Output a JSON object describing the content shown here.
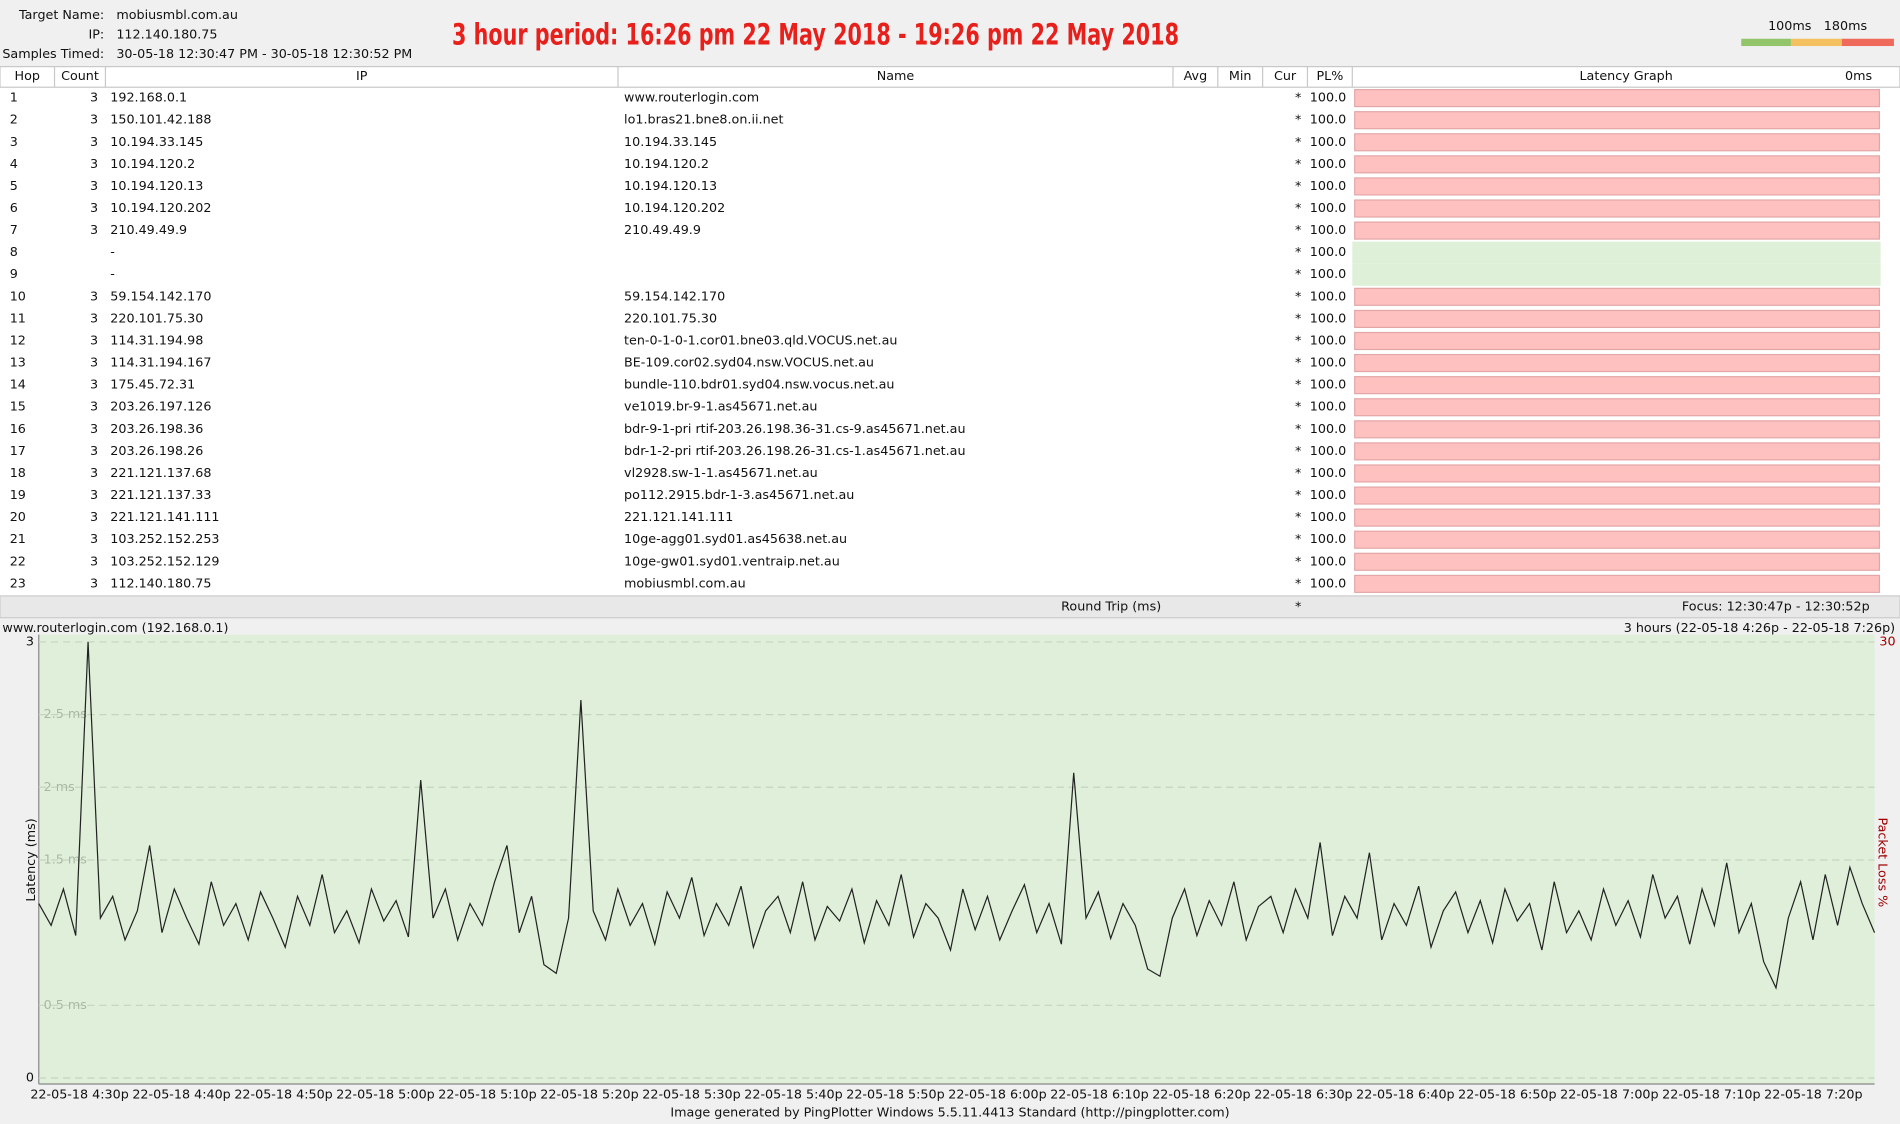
{
  "header": {
    "fields": [
      {
        "label": "Target Name:",
        "value": "mobiusmbl.com.au"
      },
      {
        "label": "IP:",
        "value": "112.140.180.75"
      },
      {
        "label": "Samples Timed:",
        "value": "30-05-18 12:30:47 PM - 30-05-18 12:30:52 PM"
      }
    ],
    "title": "3 hour period:  16:26 pm 22 May 2018 - 19:26 pm 22 May 2018",
    "scale_labels": [
      "100ms",
      "180ms"
    ]
  },
  "table": {
    "columns": [
      "Hop",
      "Count",
      "IP",
      "Name",
      "Avg",
      "Min",
      "Cur",
      "PL%",
      "Latency Graph"
    ],
    "graph_scale": "0ms",
    "rows": [
      {
        "hop": "1",
        "count": "3",
        "ip": "192.168.0.1",
        "name": "www.routerlogin.com",
        "cur": "*",
        "pl": "100.0"
      },
      {
        "hop": "2",
        "count": "3",
        "ip": "150.101.42.188",
        "name": "lo1.bras21.bne8.on.ii.net",
        "cur": "*",
        "pl": "100.0"
      },
      {
        "hop": "3",
        "count": "3",
        "ip": "10.194.33.145",
        "name": "10.194.33.145",
        "cur": "*",
        "pl": "100.0"
      },
      {
        "hop": "4",
        "count": "3",
        "ip": "10.194.120.2",
        "name": "10.194.120.2",
        "cur": "*",
        "pl": "100.0"
      },
      {
        "hop": "5",
        "count": "3",
        "ip": "10.194.120.13",
        "name": "10.194.120.13",
        "cur": "*",
        "pl": "100.0"
      },
      {
        "hop": "6",
        "count": "3",
        "ip": "10.194.120.202",
        "name": "10.194.120.202",
        "cur": "*",
        "pl": "100.0"
      },
      {
        "hop": "7",
        "count": "3",
        "ip": "210.49.49.9",
        "name": "210.49.49.9",
        "cur": "*",
        "pl": "100.0"
      },
      {
        "hop": "8",
        "ip": "-",
        "cur": "*",
        "pl": "100.0"
      },
      {
        "hop": "9",
        "ip": "-",
        "cur": "*",
        "pl": "100.0"
      },
      {
        "hop": "10",
        "count": "3",
        "ip": "59.154.142.170",
        "name": "59.154.142.170",
        "cur": "*",
        "pl": "100.0"
      },
      {
        "hop": "11",
        "count": "3",
        "ip": "220.101.75.30",
        "name": "220.101.75.30",
        "cur": "*",
        "pl": "100.0"
      },
      {
        "hop": "12",
        "count": "3",
        "ip": "114.31.194.98",
        "name": "ten-0-1-0-1.cor01.bne03.qld.VOCUS.net.au",
        "cur": "*",
        "pl": "100.0"
      },
      {
        "hop": "13",
        "count": "3",
        "ip": "114.31.194.167",
        "name": "BE-109.cor02.syd04.nsw.VOCUS.net.au",
        "cur": "*",
        "pl": "100.0"
      },
      {
        "hop": "14",
        "count": "3",
        "ip": "175.45.72.31",
        "name": "bundle-110.bdr01.syd04.nsw.vocus.net.au",
        "cur": "*",
        "pl": "100.0"
      },
      {
        "hop": "15",
        "count": "3",
        "ip": "203.26.197.126",
        "name": "ve1019.br-9-1.as45671.net.au",
        "cur": "*",
        "pl": "100.0"
      },
      {
        "hop": "16",
        "count": "3",
        "ip": "203.26.198.36",
        "name": "bdr-9-1-pri rtif-203.26.198.36-31.cs-9.as45671.net.au",
        "cur": "*",
        "pl": "100.0"
      },
      {
        "hop": "17",
        "count": "3",
        "ip": "203.26.198.26",
        "name": "bdr-1-2-pri rtif-203.26.198.26-31.cs-1.as45671.net.au",
        "cur": "*",
        "pl": "100.0"
      },
      {
        "hop": "18",
        "count": "3",
        "ip": "221.121.137.68",
        "name": "vl2928.sw-1-1.as45671.net.au",
        "cur": "*",
        "pl": "100.0"
      },
      {
        "hop": "19",
        "count": "3",
        "ip": "221.121.137.33",
        "name": "po112.2915.bdr-1-3.as45671.net.au",
        "cur": "*",
        "pl": "100.0"
      },
      {
        "hop": "20",
        "count": "3",
        "ip": "221.121.141.111",
        "name": "221.121.141.111",
        "cur": "*",
        "pl": "100.0"
      },
      {
        "hop": "21",
        "count": "3",
        "ip": "103.252.152.253",
        "name": "10ge-agg01.syd01.as45638.net.au",
        "cur": "*",
        "pl": "100.0"
      },
      {
        "hop": "22",
        "count": "3",
        "ip": "103.252.152.129",
        "name": "10ge-gw01.syd01.ventraip.net.au",
        "cur": "*",
        "pl": "100.0"
      },
      {
        "hop": "23",
        "count": "3",
        "ip": "112.140.180.75",
        "name": "mobiusmbl.com.au",
        "cur": "*",
        "pl": "100.0"
      }
    ],
    "summary": {
      "label": "Round Trip (ms)",
      "cur": "*",
      "focus": "Focus: 12:30:47p - 12:30:52p"
    }
  },
  "chart_data": {
    "type": "line",
    "title": "www.routerlogin.com (192.168.0.1)",
    "subtitle": "3 hours (22-05-18 4:26p - 22-05-18 7:26p)",
    "ylabel": "Latency (ms)",
    "y2label": "Packet Loss %",
    "ylim": [
      0,
      3
    ],
    "yticks": [
      0,
      {
        "value": 0.5,
        "label": "0.5 ms"
      },
      {
        "value": 1.5,
        "label": "1.5 ms"
      },
      {
        "value": 2,
        "label": "2 ms"
      },
      {
        "value": 2.5,
        "label": "2.5 ms"
      },
      3
    ],
    "y2lim": [
      0,
      30
    ],
    "y2ticks": [
      30
    ],
    "x_labels": [
      "22-05-18 4:30p",
      "22-05-18 4:40p",
      "22-05-18 4:50p",
      "22-05-18 5:00p",
      "22-05-18 5:10p",
      "22-05-18 5:20p",
      "22-05-18 5:30p",
      "22-05-18 5:40p",
      "22-05-18 5:50p",
      "22-05-18 6:00p",
      "22-05-18 6:10p",
      "22-05-18 6:20p",
      "22-05-18 6:30p",
      "22-05-18 6:40p",
      "22-05-18 6:50p",
      "22-05-18 7:00p",
      "22-05-18 7:10p",
      "22-05-18 7:20p"
    ],
    "color": "#222222",
    "background": "#dfefd9",
    "grid": true,
    "values": [
      1.2,
      1.05,
      1.3,
      0.98,
      3.0,
      1.1,
      1.25,
      0.95,
      1.15,
      1.6,
      1.0,
      1.3,
      1.1,
      0.92,
      1.35,
      1.05,
      1.2,
      0.95,
      1.28,
      1.1,
      0.9,
      1.25,
      1.05,
      1.4,
      1.0,
      1.15,
      0.93,
      1.3,
      1.08,
      1.22,
      0.97,
      2.05,
      1.1,
      1.3,
      0.95,
      1.2,
      1.05,
      1.35,
      1.6,
      1.0,
      1.25,
      0.78,
      0.72,
      1.1,
      2.6,
      1.15,
      0.95,
      1.3,
      1.05,
      1.2,
      0.92,
      1.28,
      1.1,
      1.38,
      0.98,
      1.2,
      1.05,
      1.32,
      0.9,
      1.15,
      1.25,
      1.0,
      1.35,
      0.95,
      1.18,
      1.08,
      1.3,
      0.93,
      1.22,
      1.05,
      1.4,
      0.97,
      1.2,
      1.1,
      0.88,
      1.3,
      1.02,
      1.25,
      0.95,
      1.15,
      1.33,
      1.0,
      1.2,
      0.92,
      2.1,
      1.1,
      1.28,
      0.96,
      1.2,
      1.05,
      0.75,
      0.7,
      1.1,
      1.3,
      0.98,
      1.22,
      1.05,
      1.35,
      0.95,
      1.18,
      1.25,
      1.0,
      1.3,
      1.1,
      1.62,
      0.98,
      1.25,
      1.1,
      1.55,
      0.95,
      1.2,
      1.05,
      1.32,
      0.9,
      1.15,
      1.28,
      1.0,
      1.22,
      0.93,
      1.3,
      1.08,
      1.2,
      0.88,
      1.35,
      1.0,
      1.15,
      0.95,
      1.3,
      1.05,
      1.22,
      0.97,
      1.4,
      1.1,
      1.25,
      0.92,
      1.3,
      1.05,
      1.48,
      1.0,
      1.2,
      0.8,
      0.62,
      1.1,
      1.35,
      0.95,
      1.4,
      1.05,
      1.45,
      1.2,
      1.0
    ]
  },
  "footer": "Image generated by PingPlotter Windows 5.5.11.4413 Standard (http://pingplotter.com)"
}
